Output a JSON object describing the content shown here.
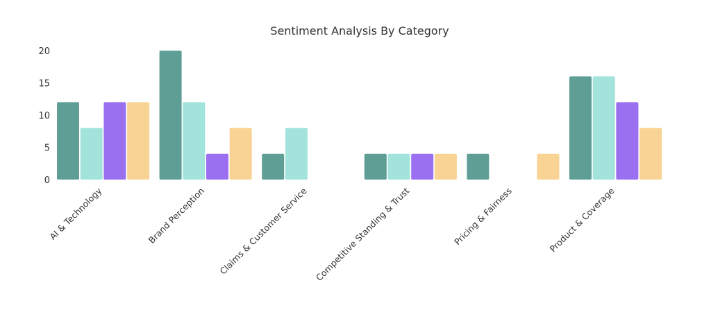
{
  "chart_data": {
    "type": "bar",
    "title": "Sentiment Analysis By Category",
    "xlabel": "",
    "ylabel": "",
    "ylim": [
      0,
      20
    ],
    "yticks": [
      0,
      5,
      10,
      15,
      20
    ],
    "grid": false,
    "categories": [
      "AI & Technology",
      "Brand Perception",
      "Claims & Customer Service",
      "Competitive Standing & Trust",
      "Pricing & Fairness",
      "Product & Coverage"
    ],
    "series": [
      {
        "color": "#5f9e95",
        "values": [
          12,
          20,
          4,
          4,
          4,
          16
        ]
      },
      {
        "color": "#a2e3dc",
        "values": [
          8,
          12,
          8,
          4,
          0,
          16
        ]
      },
      {
        "color": "#9a6ff0",
        "values": [
          12,
          4,
          0,
          4,
          0,
          12
        ]
      },
      {
        "color": "#f8d394",
        "values": [
          12,
          8,
          0,
          4,
          4,
          8
        ]
      }
    ]
  }
}
